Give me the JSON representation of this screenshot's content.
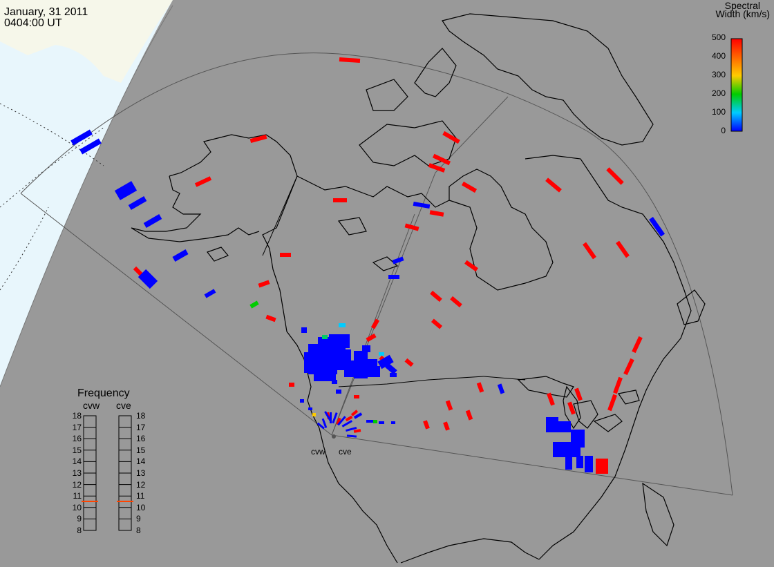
{
  "header": {
    "date": "January, 31 2011",
    "time": "0404:00 UT"
  },
  "colorbar": {
    "title_line1": "Spectral",
    "title_line2": "Width (km/s)",
    "ticks": [
      "500",
      "400",
      "300",
      "200",
      "100",
      "0"
    ],
    "gradient_colors": [
      "#ff0000",
      "#ffcc00",
      "#00cc00",
      "#00ccff",
      "#0000ff"
    ]
  },
  "radars": [
    {
      "name": "cvw",
      "frequency_mhz": 10.8
    },
    {
      "name": "cve",
      "frequency_mhz": 10.8
    }
  ],
  "frequency_panel": {
    "title": "Frequency",
    "left_label": "cvw",
    "right_label": "cve",
    "ticks": [
      "18",
      "17",
      "16",
      "15",
      "14",
      "13",
      "12",
      "11",
      "10",
      "9",
      "8"
    ],
    "marker_color": "#ff4400"
  },
  "colors": {
    "land": "#999999",
    "ocean_day": "#e8f6fc",
    "land_day": "#f6f7ea",
    "coast": "#000000",
    "high_width": "#ff0000",
    "low_width": "#0000ff",
    "mid_width": "#00cc00",
    "cyan_width": "#00ccff"
  }
}
